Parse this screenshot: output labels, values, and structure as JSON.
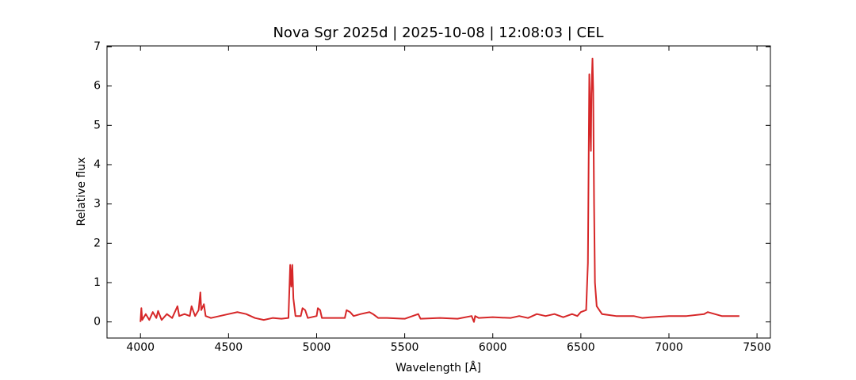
{
  "chart_data": {
    "type": "line",
    "title": "Nova Sgr 2025d | 2025-10-08 | 12:08:03 | CEL",
    "xlabel": "Wavelength [Å]",
    "ylabel": "Relative flux",
    "xlim": [
      3810,
      7576
    ],
    "ylim": [
      -0.41,
      7.02
    ],
    "xticks": [
      4000,
      4500,
      5000,
      5500,
      6000,
      6500,
      7000,
      7500
    ],
    "yticks": [
      0,
      1,
      2,
      3,
      4,
      5,
      6,
      7
    ],
    "grid": false,
    "series": [
      {
        "color": "#d62728",
        "x": [
          4000,
          4005,
          4010,
          4030,
          4050,
          4070,
          4090,
          4100,
          4120,
          4150,
          4180,
          4200,
          4210,
          4220,
          4250,
          4280,
          4290,
          4310,
          4330,
          4340,
          4345,
          4360,
          4370,
          4400,
          4450,
          4500,
          4550,
          4600,
          4650,
          4700,
          4750,
          4800,
          4840,
          4850,
          4856,
          4862,
          4868,
          4880,
          4910,
          4920,
          4935,
          4950,
          5000,
          5007,
          5020,
          5030,
          5100,
          5160,
          5170,
          5190,
          5210,
          5250,
          5300,
          5320,
          5350,
          5400,
          5500,
          5577,
          5590,
          5700,
          5800,
          5880,
          5893,
          5900,
          5920,
          6000,
          6100,
          6150,
          6200,
          6250,
          6300,
          6350,
          6400,
          6450,
          6480,
          6500,
          6530,
          6540,
          6548,
          6553,
          6557,
          6560,
          6566,
          6570,
          6575,
          6580,
          6590,
          6620,
          6700,
          6800,
          6850,
          6900,
          7000,
          7100,
          7200,
          7220,
          7300,
          7400
        ],
        "values": [
          0.0,
          0.35,
          0.05,
          0.2,
          0.05,
          0.25,
          0.1,
          0.28,
          0.05,
          0.2,
          0.1,
          0.3,
          0.4,
          0.15,
          0.2,
          0.15,
          0.4,
          0.15,
          0.3,
          0.75,
          0.3,
          0.45,
          0.15,
          0.1,
          0.15,
          0.2,
          0.25,
          0.2,
          0.1,
          0.05,
          0.1,
          0.08,
          0.1,
          1.45,
          0.9,
          1.45,
          0.6,
          0.15,
          0.15,
          0.35,
          0.3,
          0.1,
          0.15,
          0.35,
          0.3,
          0.1,
          0.1,
          0.1,
          0.3,
          0.25,
          0.15,
          0.2,
          0.25,
          0.2,
          0.1,
          0.1,
          0.08,
          0.2,
          0.08,
          0.1,
          0.08,
          0.15,
          0.0,
          0.15,
          0.1,
          0.12,
          0.1,
          0.15,
          0.1,
          0.2,
          0.15,
          0.2,
          0.12,
          0.2,
          0.15,
          0.25,
          0.3,
          1.5,
          6.3,
          5.0,
          4.35,
          5.8,
          6.7,
          5.9,
          3.0,
          1.0,
          0.4,
          0.2,
          0.15,
          0.15,
          0.1,
          0.12,
          0.15,
          0.15,
          0.2,
          0.25,
          0.15,
          0.15
        ]
      }
    ]
  }
}
